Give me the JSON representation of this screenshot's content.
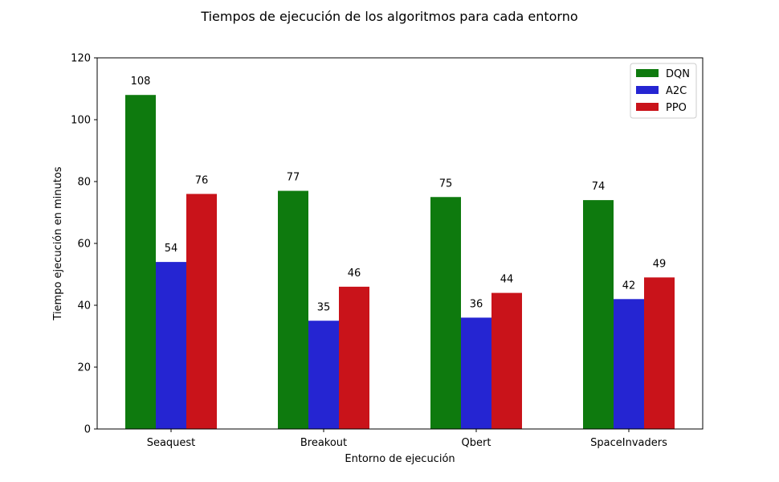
{
  "chart_data": {
    "type": "bar",
    "title": "Tiempos de ejecución de los algoritmos para cada entorno",
    "xlabel": "Entorno de ejecución",
    "ylabel": "Tiempo ejecución en minutos",
    "categories": [
      "Seaquest",
      "Breakout",
      "Qbert",
      "SpaceInvaders"
    ],
    "series": [
      {
        "name": "DQN",
        "color": "#0e7a0e",
        "values": [
          108,
          77,
          75,
          74
        ]
      },
      {
        "name": "A2C",
        "color": "#2525d2",
        "values": [
          54,
          35,
          36,
          42
        ]
      },
      {
        "name": "PPO",
        "color": "#c9131a",
        "values": [
          76,
          46,
          44,
          49
        ]
      }
    ],
    "ylim": [
      0,
      120
    ],
    "yticks": [
      0,
      20,
      40,
      60,
      80,
      100,
      120
    ],
    "grid": false,
    "legend_position": "top-right",
    "data_labels": true
  }
}
